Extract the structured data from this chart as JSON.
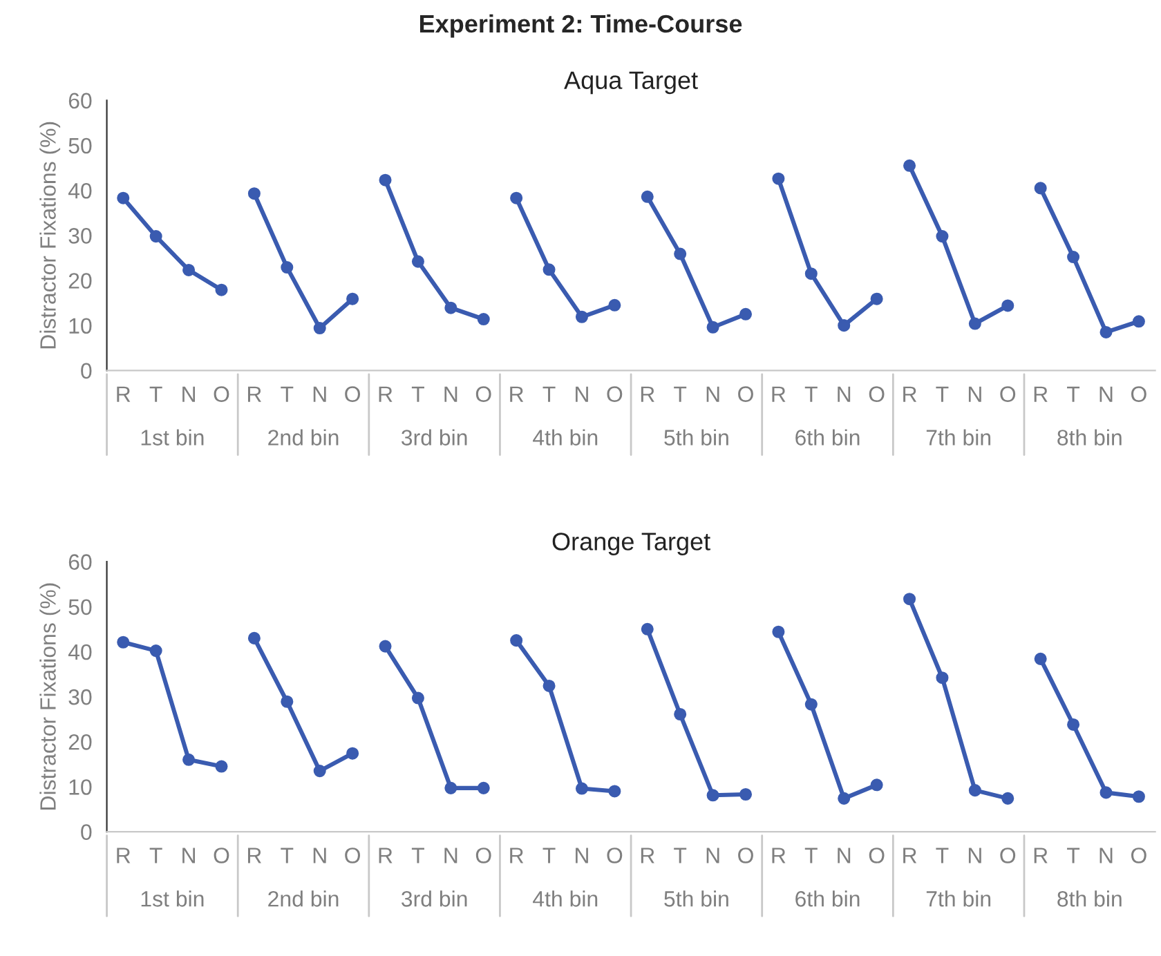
{
  "chart_data": [
    {
      "type": "line",
      "title": "Experiment 2: Time-Course",
      "subtitle": "Aqua Target",
      "ylabel": "Distractor Fixations (%)",
      "categories": [
        "R",
        "T",
        "N",
        "O",
        "R",
        "T",
        "N",
        "O",
        "R",
        "T",
        "N",
        "O",
        "R",
        "T",
        "N",
        "O",
        "R",
        "T",
        "N",
        "O",
        "R",
        "T",
        "N",
        "O",
        "R",
        "T",
        "N",
        "O",
        "R",
        "T",
        "N",
        "O"
      ],
      "annotations": [
        "1st bin",
        "2nd bin",
        "3rd bin",
        "4th bin",
        "5th bin",
        "6th bin",
        "7th bin",
        "8th bin"
      ],
      "ylim": [
        0,
        60
      ],
      "yticks": [
        0,
        10,
        20,
        30,
        40,
        50,
        60
      ],
      "grid": false,
      "legend": false,
      "marker": "circle",
      "line_style": "solid",
      "series": [
        {
          "color": "#3a5bb0",
          "values": [
            38.3,
            29.8,
            22.3,
            17.9,
            null,
            null,
            null,
            null,
            null,
            null,
            null,
            null,
            null,
            null,
            null,
            null,
            null,
            null,
            null,
            null,
            null,
            null,
            null,
            null,
            null,
            null,
            null,
            null,
            null,
            null,
            null,
            null
          ]
        },
        {
          "color": "#3a5bb0",
          "values": [
            null,
            null,
            null,
            null,
            39.3,
            22.9,
            9.4,
            15.9,
            null,
            null,
            null,
            null,
            null,
            null,
            null,
            null,
            null,
            null,
            null,
            null,
            null,
            null,
            null,
            null,
            null,
            null,
            null,
            null,
            null,
            null,
            null,
            null
          ]
        },
        {
          "color": "#3a5bb0",
          "values": [
            null,
            null,
            null,
            null,
            null,
            null,
            null,
            null,
            42.3,
            24.2,
            13.9,
            11.4,
            null,
            null,
            null,
            null,
            null,
            null,
            null,
            null,
            null,
            null,
            null,
            null,
            null,
            null,
            null,
            null,
            null,
            null,
            null,
            null
          ]
        },
        {
          "color": "#3a5bb0",
          "values": [
            null,
            null,
            null,
            null,
            null,
            null,
            null,
            null,
            null,
            null,
            null,
            null,
            38.3,
            22.4,
            11.9,
            14.5,
            null,
            null,
            null,
            null,
            null,
            null,
            null,
            null,
            null,
            null,
            null,
            null,
            null,
            null,
            null,
            null
          ]
        },
        {
          "color": "#3a5bb0",
          "values": [
            null,
            null,
            null,
            null,
            null,
            null,
            null,
            null,
            null,
            null,
            null,
            null,
            null,
            null,
            null,
            null,
            38.6,
            25.9,
            9.6,
            12.5,
            null,
            null,
            null,
            null,
            null,
            null,
            null,
            null,
            null,
            null,
            null,
            null
          ]
        },
        {
          "color": "#3a5bb0",
          "values": [
            null,
            null,
            null,
            null,
            null,
            null,
            null,
            null,
            null,
            null,
            null,
            null,
            null,
            null,
            null,
            null,
            null,
            null,
            null,
            null,
            42.6,
            21.5,
            10.0,
            15.9,
            null,
            null,
            null,
            null,
            null,
            null,
            null,
            null
          ]
        },
        {
          "color": "#3a5bb0",
          "values": [
            null,
            null,
            null,
            null,
            null,
            null,
            null,
            null,
            null,
            null,
            null,
            null,
            null,
            null,
            null,
            null,
            null,
            null,
            null,
            null,
            null,
            null,
            null,
            null,
            45.5,
            29.8,
            10.4,
            14.4,
            null,
            null,
            null,
            null
          ]
        },
        {
          "color": "#3a5bb0",
          "values": [
            null,
            null,
            null,
            null,
            null,
            null,
            null,
            null,
            null,
            null,
            null,
            null,
            null,
            null,
            null,
            null,
            null,
            null,
            null,
            null,
            null,
            null,
            null,
            null,
            null,
            null,
            null,
            null,
            40.5,
            25.2,
            8.5,
            10.9
          ]
        }
      ]
    },
    {
      "type": "line",
      "subtitle": "Orange Target",
      "ylabel": "Distractor Fixations (%)",
      "categories": [
        "R",
        "T",
        "N",
        "O",
        "R",
        "T",
        "N",
        "O",
        "R",
        "T",
        "N",
        "O",
        "R",
        "T",
        "N",
        "O",
        "R",
        "T",
        "N",
        "O",
        "R",
        "T",
        "N",
        "O",
        "R",
        "T",
        "N",
        "O",
        "R",
        "T",
        "N",
        "O"
      ],
      "annotations": [
        "1st bin",
        "2nd bin",
        "3rd bin",
        "4th bin",
        "5th bin",
        "6th bin",
        "7th bin",
        "8th bin"
      ],
      "ylim": [
        0,
        60
      ],
      "yticks": [
        0,
        10,
        20,
        30,
        40,
        50,
        60
      ],
      "grid": false,
      "legend": false,
      "marker": "circle",
      "line_style": "solid",
      "series": [
        {
          "color": "#3a5bb0",
          "values": [
            42.1,
            40.2,
            16.0,
            14.5,
            null,
            null,
            null,
            null,
            null,
            null,
            null,
            null,
            null,
            null,
            null,
            null,
            null,
            null,
            null,
            null,
            null,
            null,
            null,
            null,
            null,
            null,
            null,
            null,
            null,
            null,
            null,
            null
          ]
        },
        {
          "color": "#3a5bb0",
          "values": [
            null,
            null,
            null,
            null,
            43.0,
            28.9,
            13.5,
            17.4,
            null,
            null,
            null,
            null,
            null,
            null,
            null,
            null,
            null,
            null,
            null,
            null,
            null,
            null,
            null,
            null,
            null,
            null,
            null,
            null,
            null,
            null,
            null,
            null
          ]
        },
        {
          "color": "#3a5bb0",
          "values": [
            null,
            null,
            null,
            null,
            null,
            null,
            null,
            null,
            41.2,
            29.7,
            9.7,
            9.7,
            null,
            null,
            null,
            null,
            null,
            null,
            null,
            null,
            null,
            null,
            null,
            null,
            null,
            null,
            null,
            null,
            null,
            null,
            null,
            null
          ]
        },
        {
          "color": "#3a5bb0",
          "values": [
            null,
            null,
            null,
            null,
            null,
            null,
            null,
            null,
            null,
            null,
            null,
            null,
            42.5,
            32.4,
            9.6,
            9.0,
            null,
            null,
            null,
            null,
            null,
            null,
            null,
            null,
            null,
            null,
            null,
            null,
            null,
            null,
            null,
            null
          ]
        },
        {
          "color": "#3a5bb0",
          "values": [
            null,
            null,
            null,
            null,
            null,
            null,
            null,
            null,
            null,
            null,
            null,
            null,
            null,
            null,
            null,
            null,
            45.0,
            26.1,
            8.1,
            8.3,
            null,
            null,
            null,
            null,
            null,
            null,
            null,
            null,
            null,
            null,
            null,
            null
          ]
        },
        {
          "color": "#3a5bb0",
          "values": [
            null,
            null,
            null,
            null,
            null,
            null,
            null,
            null,
            null,
            null,
            null,
            null,
            null,
            null,
            null,
            null,
            null,
            null,
            null,
            null,
            44.4,
            28.3,
            7.4,
            10.4,
            null,
            null,
            null,
            null,
            null,
            null,
            null,
            null
          ]
        },
        {
          "color": "#3a5bb0",
          "values": [
            null,
            null,
            null,
            null,
            null,
            null,
            null,
            null,
            null,
            null,
            null,
            null,
            null,
            null,
            null,
            null,
            null,
            null,
            null,
            null,
            null,
            null,
            null,
            null,
            51.7,
            34.2,
            9.2,
            7.4,
            null,
            null,
            null,
            null
          ]
        },
        {
          "color": "#3a5bb0",
          "values": [
            null,
            null,
            null,
            null,
            null,
            null,
            null,
            null,
            null,
            null,
            null,
            null,
            null,
            null,
            null,
            null,
            null,
            null,
            null,
            null,
            null,
            null,
            null,
            null,
            null,
            null,
            null,
            null,
            38.4,
            23.8,
            8.7,
            7.8
          ]
        }
      ]
    }
  ]
}
